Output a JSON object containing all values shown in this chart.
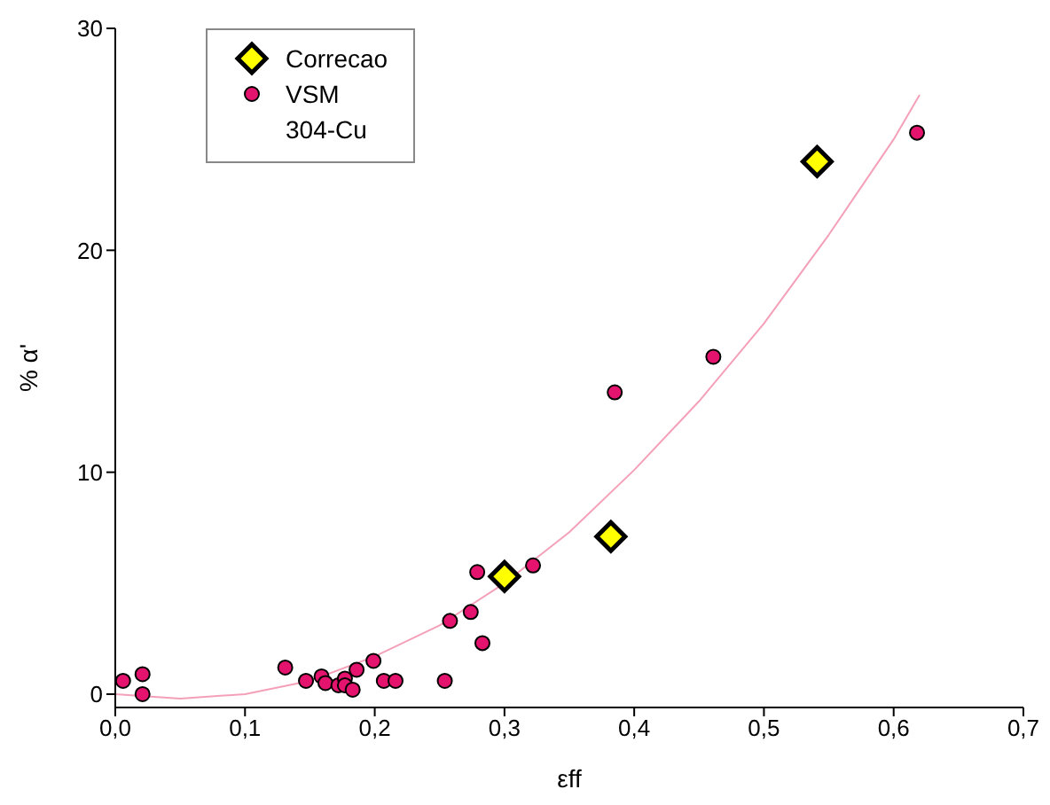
{
  "chart_data": {
    "type": "scatter",
    "xlabel": "εff",
    "ylabel": "% α'",
    "xlim": [
      0,
      0.7
    ],
    "ylim": [
      -0.6,
      30
    ],
    "xticks": [
      {
        "value": 0,
        "label": "0,0"
      },
      {
        "value": 0.1,
        "label": "0,1"
      },
      {
        "value": 0.2,
        "label": "0,2"
      },
      {
        "value": 0.3,
        "label": "0,3"
      },
      {
        "value": 0.4,
        "label": "0,4"
      },
      {
        "value": 0.5,
        "label": "0,5"
      },
      {
        "value": 0.6,
        "label": "0,6"
      },
      {
        "value": 0.7,
        "label": "0,7"
      }
    ],
    "yticks": [
      0,
      10,
      20,
      30
    ],
    "grid": false,
    "legend": "top left",
    "annotations": [
      "304-Cu"
    ],
    "series": [
      {
        "name": "Correcao",
        "marker": "diamond",
        "color": "#ffff00",
        "x": [
          0.3,
          0.382,
          0.541
        ],
        "values": [
          5.3,
          7.1,
          24.0
        ]
      },
      {
        "name": "VSM",
        "marker": "circle",
        "color": "#e4146e",
        "x": [
          0.006,
          0.021,
          0.021,
          0.131,
          0.147,
          0.159,
          0.162,
          0.172,
          0.177,
          0.177,
          0.183,
          0.186,
          0.199,
          0.207,
          0.216,
          0.254,
          0.258,
          0.274,
          0.283,
          0.279,
          0.322,
          0.385,
          0.461,
          0.618
        ],
        "values": [
          0.6,
          0.9,
          0.0,
          1.2,
          0.6,
          0.8,
          0.5,
          0.4,
          0.7,
          0.4,
          0.2,
          1.1,
          1.5,
          0.6,
          0.6,
          0.6,
          3.3,
          3.7,
          2.3,
          5.5,
          5.8,
          13.6,
          15.2,
          25.3
        ]
      },
      {
        "type": "line",
        "marker": "none",
        "line_style": "solid",
        "color": "#f4a0b8",
        "x": [
          0,
          0.05,
          0.1,
          0.15,
          0.2,
          0.25,
          0.3,
          0.35,
          0.4,
          0.45,
          0.5,
          0.55,
          0.6,
          0.62
        ],
        "values": [
          0.0,
          -0.2,
          0.0,
          0.6,
          1.7,
          3.1,
          5.0,
          7.3,
          10.1,
          13.2,
          16.7,
          20.7,
          25.0,
          27.0
        ]
      }
    ]
  }
}
